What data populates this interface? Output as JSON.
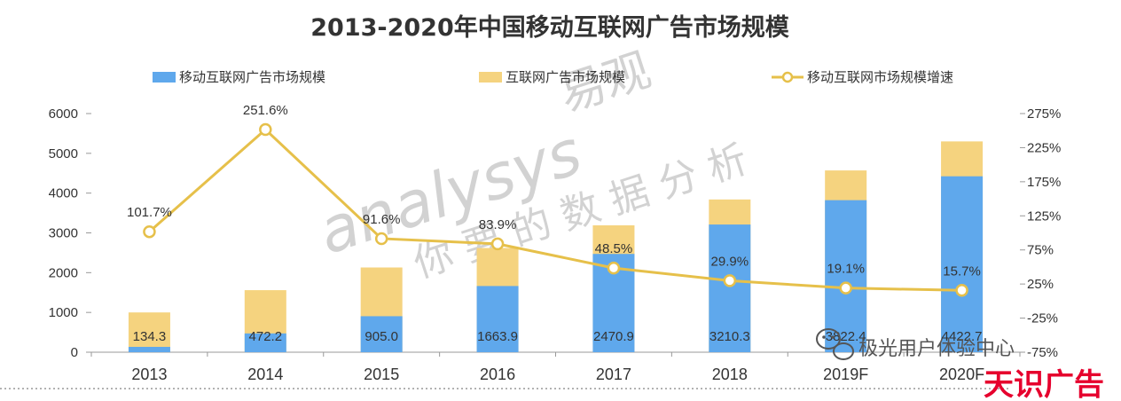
{
  "chart_data": {
    "type": "bar",
    "stacked": true,
    "title": "2013-2020年中国移动互联网广告市场规模",
    "categories": [
      "2013",
      "2014",
      "2015",
      "2016",
      "2017",
      "2018",
      "2019F",
      "2020F"
    ],
    "series": [
      {
        "name": "移动互联网广告市场规模",
        "type": "bar",
        "color": "#5fa8ec",
        "values": [
          134.3,
          472.2,
          905.0,
          1663.9,
          2470.9,
          3210.3,
          3822.4,
          4422.7
        ],
        "labels": [
          "134.3",
          "472.2",
          "905.0",
          "1663.9",
          "2470.9",
          "3210.3",
          "3822.4",
          "4422.7"
        ]
      },
      {
        "name": "互联网广告市场规模",
        "type": "bar",
        "color": "#f5d37f",
        "values": [
          1000,
          1560,
          2130,
          2620,
          3190,
          3840,
          4570,
          5300
        ]
      },
      {
        "name": "移动互联网市场规模增速",
        "type": "line",
        "axis": "right",
        "color": "#e6c04a",
        "values": [
          101.7,
          251.6,
          91.6,
          83.9,
          48.5,
          29.9,
          19.1,
          15.7
        ],
        "labels": [
          "101.7%",
          "251.6%",
          "91.6%",
          "83.9%",
          "48.5%",
          "29.9%",
          "19.1%",
          "15.7%"
        ]
      }
    ],
    "y_left": {
      "ticks": [
        "6000",
        "5000",
        "4000",
        "3000",
        "2000",
        "1000",
        "0"
      ],
      "range": [
        0,
        6000
      ]
    },
    "y_right": {
      "ticks": [
        "275%",
        "225%",
        "175%",
        "125%",
        "75%",
        "25%",
        "-25%",
        "-75%"
      ],
      "range": [
        -75,
        275
      ]
    },
    "grid": false,
    "legend_position": "top"
  },
  "watermark": {
    "latin": "analysys",
    "latin_cjk": "易观",
    "cjk": "你要的数据分析"
  },
  "overlay": {
    "wechat_label": "极光用户体验中心",
    "wechat_icon": "wechat-icon",
    "brand_text": "天识广告",
    "brand_color": "#e6002d"
  }
}
